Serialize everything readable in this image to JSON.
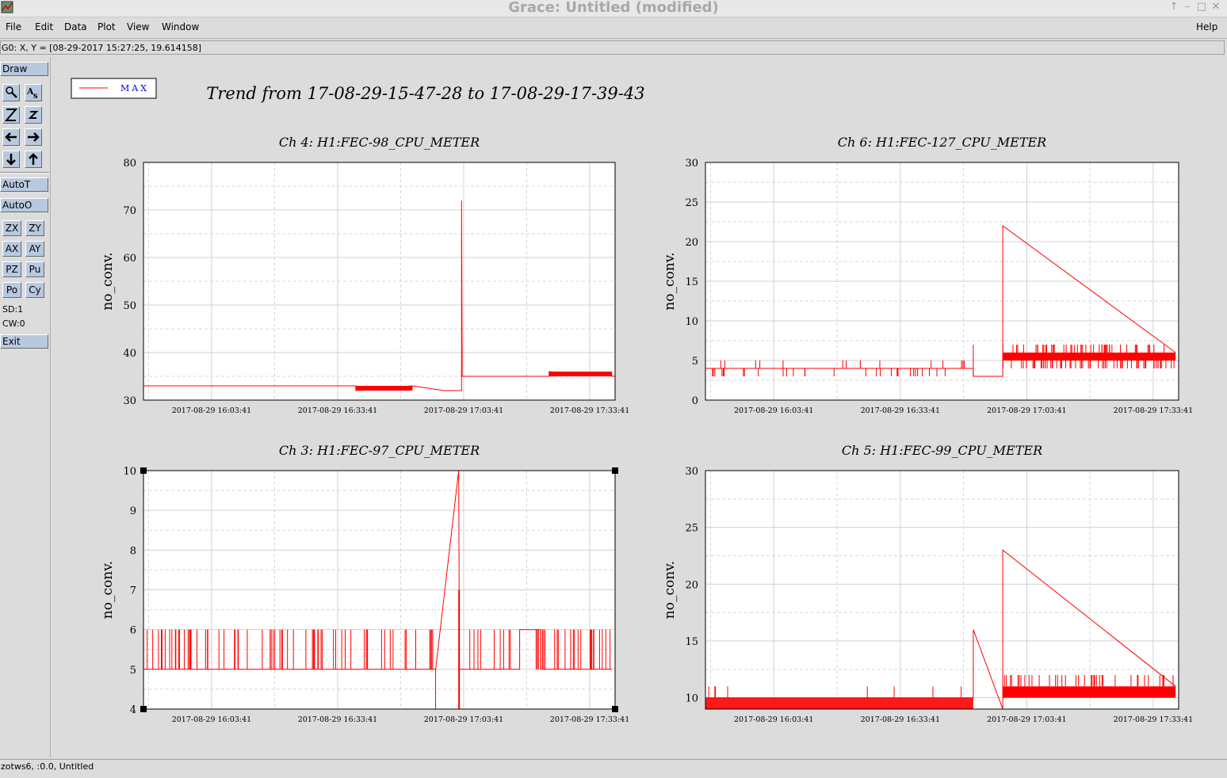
{
  "window": {
    "title": "Grace: Untitled (modified)",
    "controls": [
      "↑",
      "–",
      "□",
      "✕"
    ]
  },
  "menubar": {
    "items": [
      "File",
      "Edit",
      "Data",
      "Plot",
      "View",
      "Window"
    ],
    "help": "Help"
  },
  "locator": "G0: X, Y = [08-29-2017 15:27:25, 19.614158]",
  "toolbar": {
    "draw": "Draw",
    "icons": [
      "zoom-icon",
      "text-icon",
      "zoom-in-icon",
      "zoom-out-icon",
      "scroll-left-icon",
      "scroll-right-icon",
      "scroll-down-icon",
      "scroll-up-icon"
    ],
    "autot": "AutoT",
    "autoo": "AutoO",
    "small_buttons": [
      "ZX",
      "ZY",
      "AX",
      "AY",
      "PZ",
      "Pu",
      "Po",
      "Cy"
    ],
    "sd": "SD:1",
    "cw": "CW:0",
    "exit": "Exit"
  },
  "status": "zotws6, :0.0, Untitled",
  "plot": {
    "legend": "MAX",
    "title": "Trend from 17-08-29-15-47-28 to 17-08-29-17-39-43",
    "line_color": "#ff0000"
  },
  "chart_data": [
    {
      "type": "line",
      "title": "Ch 4: H1:FEC-98_CPU_METER",
      "ylabel": "no_conv.",
      "ylim": [
        30,
        80
      ],
      "yticks": [
        "30",
        "40",
        "50",
        "60",
        "70",
        "80"
      ],
      "xticks": [
        "2017-08-29 16:03:41",
        "2017-08-29 16:33:41",
        "2017-08-29 17:03:41",
        "2017-08-29 17:33:41"
      ],
      "series": [
        {
          "x": [
            "2017-08-29 15:47:28",
            "2017-08-29 16:38:00",
            "2017-08-29 16:38:00",
            "2017-08-29 16:51:30",
            "2017-08-29 16:51:30",
            "2017-08-29 16:59:00",
            "2017-08-29 16:59:00",
            "2017-08-29 17:03:10",
            "2017-08-29 17:03:10",
            "2017-08-29 17:03:20",
            "2017-08-29 17:03:20",
            "2017-08-29 17:24:00",
            "2017-08-29 17:24:00",
            "2017-08-29 17:39:43"
          ],
          "values": [
            33,
            33,
            32,
            33,
            33,
            32,
            32,
            32,
            72,
            35,
            35,
            35,
            36,
            35
          ]
        }
      ]
    },
    {
      "type": "line",
      "title": "Ch 6: H1:FEC-127_CPU_METER",
      "ylabel": "no_conv.",
      "ylim": [
        0,
        30
      ],
      "yticks": [
        "0",
        "5",
        "10",
        "15",
        "20",
        "25",
        "30"
      ],
      "xticks": [
        "2017-08-29 16:03:41",
        "2017-08-29 16:33:41",
        "2017-08-29 17:03:41",
        "2017-08-29 17:33:41"
      ],
      "series": [
        {
          "x": [
            "2017-08-29 15:47:28",
            "2017-08-29 16:51:00",
            "2017-08-29 16:51:00",
            "2017-08-29 16:58:00",
            "2017-08-29 16:58:00",
            "2017-08-29 17:39:00"
          ],
          "values": [
            4,
            4,
            3,
            3,
            22,
            6
          ]
        }
      ]
    },
    {
      "type": "line",
      "title": "Ch 3: H1:FEC-97_CPU_METER",
      "ylabel": "no_conv.",
      "ylim": [
        4,
        10
      ],
      "yticks": [
        "4",
        "5",
        "6",
        "7",
        "8",
        "9",
        "10"
      ],
      "xticks": [
        "2017-08-29 16:03:41",
        "2017-08-29 16:33:41",
        "2017-08-29 17:03:41",
        "2017-08-29 17:33:41"
      ],
      "series": [
        {
          "x": [
            "2017-08-29 15:47:28",
            "2017-08-29 16:57:00",
            "2017-08-29 17:02:30",
            "2017-08-29 17:02:40",
            "2017-08-29 17:17:00",
            "2017-08-29 17:17:00",
            "2017-08-29 17:22:00",
            "2017-08-29 17:22:00",
            "2017-08-29 17:39:00"
          ],
          "values": [
            5,
            5,
            10,
            5,
            5,
            6,
            6,
            5,
            5
          ]
        }
      ]
    },
    {
      "type": "line",
      "title": "Ch 5: H1:FEC-99_CPU_METER",
      "ylabel": "no_conv.",
      "ylim": [
        9,
        30
      ],
      "yticks": [
        "10",
        "15",
        "20",
        "25",
        "30"
      ],
      "xticks": [
        "2017-08-29 16:03:41",
        "2017-08-29 16:33:41",
        "2017-08-29 17:03:41",
        "2017-08-29 17:33:41"
      ],
      "series": [
        {
          "x": [
            "2017-08-29 15:47:28",
            "2017-08-29 16:51:00",
            "2017-08-29 16:51:00",
            "2017-08-29 16:58:00",
            "2017-08-29 16:58:00",
            "2017-08-29 17:39:00"
          ],
          "values": [
            10,
            10,
            16,
            9,
            23,
            11
          ]
        }
      ]
    }
  ]
}
